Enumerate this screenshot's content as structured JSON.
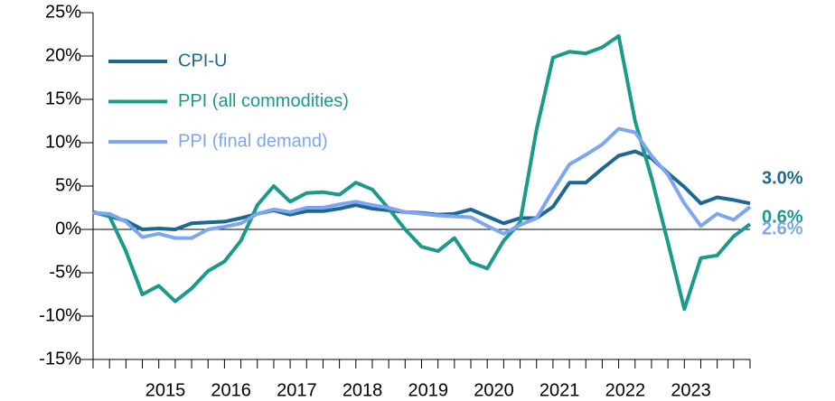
{
  "chart_data": {
    "type": "line",
    "x": [
      2014.5,
      2014.75,
      2015,
      2015.25,
      2015.5,
      2015.75,
      2016,
      2016.25,
      2016.5,
      2016.75,
      2017,
      2017.25,
      2017.5,
      2017.75,
      2018,
      2018.25,
      2018.5,
      2018.75,
      2019,
      2019.25,
      2019.5,
      2019.75,
      2020,
      2020.25,
      2020.5,
      2020.75,
      2021,
      2021.25,
      2021.5,
      2021.75,
      2022,
      2022.25,
      2022.5,
      2022.75,
      2023,
      2023.25,
      2023.5,
      2023.75,
      2024,
      2024.25,
      2024.5
    ],
    "xlim": [
      2014.5,
      2024.5
    ],
    "xticks": [
      {
        "value": 2015.6,
        "label": "2015"
      },
      {
        "value": 2016.6,
        "label": "2016"
      },
      {
        "value": 2017.6,
        "label": "2017"
      },
      {
        "value": 2018.6,
        "label": "2018"
      },
      {
        "value": 2019.6,
        "label": "2019"
      },
      {
        "value": 2020.6,
        "label": "2020"
      },
      {
        "value": 2021.6,
        "label": "2021"
      },
      {
        "value": 2022.6,
        "label": "2022"
      },
      {
        "value": 2023.6,
        "label": "2023"
      }
    ],
    "ylim": [
      -15,
      25
    ],
    "yticks": [
      {
        "value": -15,
        "label": "-15%"
      },
      {
        "value": -10,
        "label": "-10%"
      },
      {
        "value": -5,
        "label": "-5%"
      },
      {
        "value": 0,
        "label": "0%"
      },
      {
        "value": 5,
        "label": "5%"
      },
      {
        "value": 10,
        "label": "10%"
      },
      {
        "value": 15,
        "label": "15%"
      },
      {
        "value": 20,
        "label": "20%"
      },
      {
        "value": 25,
        "label": "25%"
      }
    ],
    "series": [
      {
        "name": "CPI-U",
        "color": "#1d6892",
        "last_label": "3.0%",
        "values": [
          2.0,
          1.5,
          1.0,
          0.0,
          0.1,
          0.0,
          0.7,
          0.8,
          0.9,
          1.3,
          1.8,
          2.2,
          1.7,
          2.1,
          2.1,
          2.4,
          2.8,
          2.4,
          2.2,
          2.0,
          1.9,
          1.7,
          1.8,
          2.3,
          1.5,
          0.7,
          1.3,
          1.3,
          2.6,
          5.4,
          5.4,
          7.0,
          8.5,
          9.0,
          8.2,
          6.5,
          4.9,
          3.0,
          3.7,
          3.4,
          3.0
        ]
      },
      {
        "name": "PPI (all commodities)",
        "color": "#1a9a8b",
        "last_label": "0.6%",
        "values": [
          2.0,
          1.5,
          -2.5,
          -7.5,
          -6.5,
          -8.3,
          -6.8,
          -4.8,
          -3.7,
          -1.3,
          2.8,
          5.0,
          3.2,
          4.2,
          4.3,
          4.0,
          5.4,
          4.6,
          2.4,
          0.0,
          -2.0,
          -2.5,
          -1.0,
          -3.8,
          -4.5,
          -1.3,
          0.8,
          11.5,
          19.8,
          20.5,
          20.3,
          21.0,
          22.3,
          12.5,
          6.0,
          -1.5,
          -9.2,
          -3.3,
          -3.0,
          -0.8,
          0.6
        ]
      },
      {
        "name": "PPI (final demand)",
        "color": "#7ea6f0",
        "last_label": "2.6%",
        "values": [
          1.9,
          1.8,
          0.9,
          -0.9,
          -0.5,
          -1.0,
          -1.0,
          0.0,
          0.3,
          0.7,
          1.8,
          2.3,
          2.0,
          2.5,
          2.5,
          2.9,
          3.2,
          2.8,
          2.5,
          2.0,
          1.8,
          1.6,
          1.5,
          1.4,
          0.4,
          -0.5,
          0.5,
          1.3,
          4.5,
          7.5,
          8.6,
          9.8,
          11.6,
          11.2,
          8.5,
          6.3,
          3.0,
          0.4,
          1.8,
          1.1,
          2.6
        ]
      }
    ]
  }
}
